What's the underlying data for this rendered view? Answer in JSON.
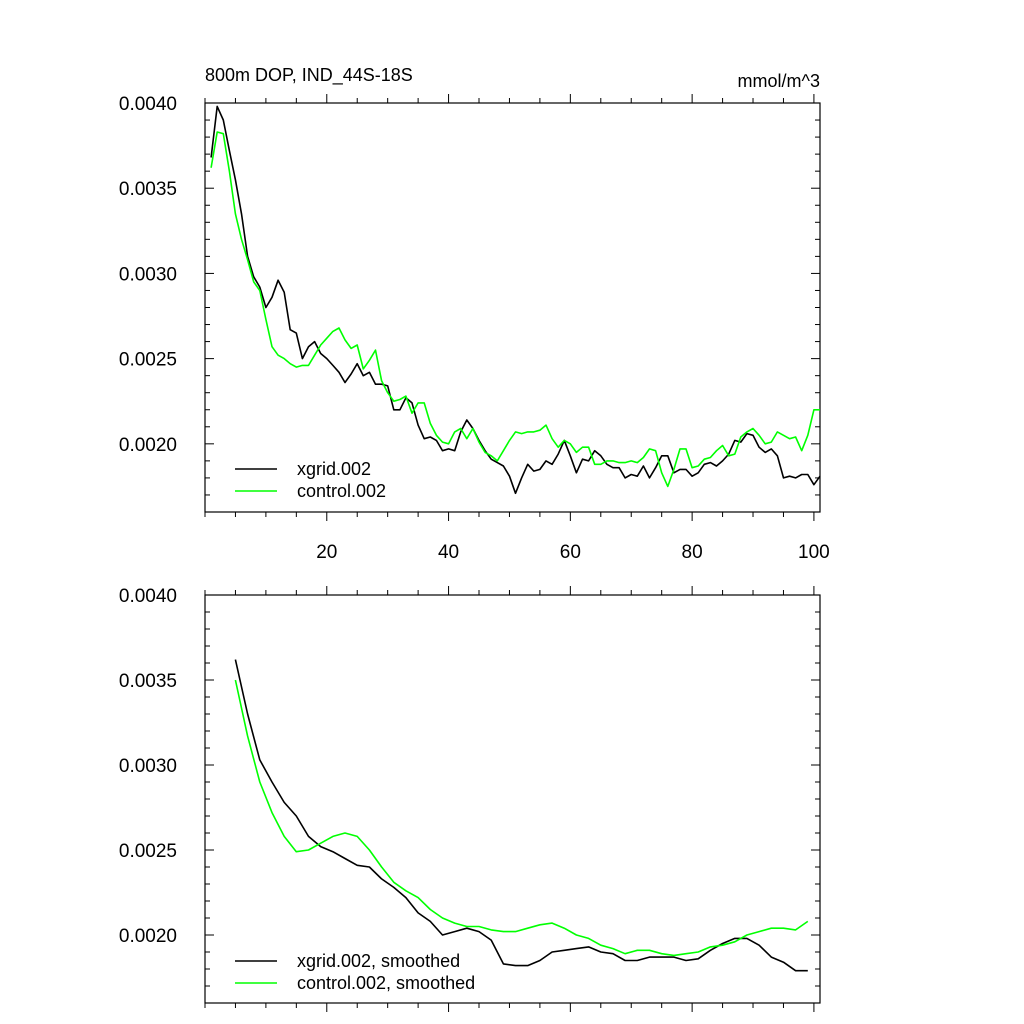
{
  "chart_data": [
    {
      "type": "line",
      "title": "800m DOP, IND_44S-18S",
      "units": "mmol/m^3",
      "xlim": [
        0,
        101
      ],
      "ylim": [
        0.0016,
        0.004
      ],
      "xticks": [
        20,
        40,
        60,
        80,
        100
      ],
      "xtick_labels": [
        "20",
        "40",
        "60",
        "80",
        "100"
      ],
      "yticks": [
        0.002,
        0.0025,
        0.003,
        0.0035,
        0.004
      ],
      "ytick_labels": [
        "0.0020",
        "0.0025",
        "0.0030",
        "0.0035",
        "0.0040"
      ],
      "legend_position": "bottom-left",
      "series": [
        {
          "name": "xgrid.002",
          "color": "#000000",
          "x": [
            1,
            2,
            3,
            4,
            5,
            6,
            7,
            8,
            9,
            10,
            11,
            12,
            13,
            14,
            15,
            16,
            17,
            18,
            19,
            20,
            21,
            22,
            23,
            24,
            25,
            26,
            27,
            28,
            29,
            30,
            31,
            32,
            33,
            34,
            35,
            36,
            37,
            38,
            39,
            40,
            41,
            42,
            43,
            44,
            45,
            46,
            47,
            48,
            49,
            50,
            51,
            52,
            53,
            54,
            55,
            56,
            57,
            58,
            59,
            60,
            61,
            62,
            63,
            64,
            65,
            66,
            67,
            68,
            69,
            70,
            71,
            72,
            73,
            74,
            75,
            76,
            77,
            78,
            79,
            80,
            81,
            82,
            83,
            84,
            85,
            86,
            87,
            88,
            89,
            90,
            91,
            92,
            93,
            94,
            95,
            96,
            97,
            98,
            99,
            100,
            101
          ],
          "values": [
            0.00368,
            0.00398,
            0.0039,
            0.00372,
            0.00355,
            0.00335,
            0.0031,
            0.00298,
            0.00292,
            0.0028,
            0.00286,
            0.00296,
            0.00289,
            0.00267,
            0.00265,
            0.0025,
            0.00257,
            0.0026,
            0.00253,
            0.0025,
            0.00246,
            0.00242,
            0.00236,
            0.00241,
            0.00247,
            0.0024,
            0.00242,
            0.00235,
            0.00235,
            0.00234,
            0.0022,
            0.0022,
            0.00227,
            0.00224,
            0.00211,
            0.00203,
            0.00204,
            0.00202,
            0.00196,
            0.00197,
            0.00196,
            0.00207,
            0.00214,
            0.00209,
            0.00202,
            0.00196,
            0.00191,
            0.00189,
            0.00187,
            0.00181,
            0.00171,
            0.0018,
            0.00188,
            0.00184,
            0.00185,
            0.0019,
            0.00188,
            0.00194,
            0.00202,
            0.00193,
            0.00183,
            0.00191,
            0.0019,
            0.00196,
            0.00193,
            0.00188,
            0.00186,
            0.00186,
            0.0018,
            0.00182,
            0.00181,
            0.00187,
            0.0018,
            0.00186,
            0.00193,
            0.00193,
            0.00183,
            0.00185,
            0.00185,
            0.00181,
            0.00183,
            0.00188,
            0.00189,
            0.00187,
            0.0019,
            0.00194,
            0.00202,
            0.00201,
            0.00206,
            0.00205,
            0.00198,
            0.00195,
            0.00197,
            0.00193,
            0.0018,
            0.00181,
            0.0018,
            0.00182,
            0.00182,
            0.00176,
            0.00181
          ]
        },
        {
          "name": "control.002",
          "color": "#00ff00",
          "x": [
            1,
            2,
            3,
            4,
            5,
            6,
            7,
            8,
            9,
            10,
            11,
            12,
            13,
            14,
            15,
            16,
            17,
            18,
            19,
            20,
            21,
            22,
            23,
            24,
            25,
            26,
            27,
            28,
            29,
            30,
            31,
            32,
            33,
            34,
            35,
            36,
            37,
            38,
            39,
            40,
            41,
            42,
            43,
            44,
            45,
            46,
            47,
            48,
            49,
            50,
            51,
            52,
            53,
            54,
            55,
            56,
            57,
            58,
            59,
            60,
            61,
            62,
            63,
            64,
            65,
            66,
            67,
            68,
            69,
            70,
            71,
            72,
            73,
            74,
            75,
            76,
            77,
            78,
            79,
            80,
            81,
            82,
            83,
            84,
            85,
            86,
            87,
            88,
            89,
            90,
            91,
            92,
            93,
            94,
            95,
            96,
            97,
            98,
            99,
            100,
            101
          ],
          "values": [
            0.00362,
            0.00383,
            0.00382,
            0.0036,
            0.00335,
            0.0032,
            0.00308,
            0.00295,
            0.0029,
            0.00273,
            0.00257,
            0.00252,
            0.0025,
            0.00247,
            0.00245,
            0.00246,
            0.00246,
            0.00252,
            0.00258,
            0.00262,
            0.00266,
            0.00268,
            0.00261,
            0.00256,
            0.00258,
            0.00244,
            0.00249,
            0.00255,
            0.00237,
            0.0023,
            0.00225,
            0.00226,
            0.00228,
            0.00218,
            0.00224,
            0.00224,
            0.00212,
            0.00205,
            0.00201,
            0.002,
            0.00207,
            0.00209,
            0.00203,
            0.00209,
            0.00201,
            0.00195,
            0.00193,
            0.0019,
            0.00196,
            0.00202,
            0.00207,
            0.00206,
            0.00207,
            0.00207,
            0.00208,
            0.00211,
            0.00203,
            0.00198,
            0.00202,
            0.002,
            0.00195,
            0.00198,
            0.00198,
            0.00188,
            0.00188,
            0.0019,
            0.0019,
            0.00189,
            0.00189,
            0.0019,
            0.00189,
            0.00192,
            0.00197,
            0.00196,
            0.00183,
            0.00175,
            0.00185,
            0.00197,
            0.00197,
            0.00186,
            0.00187,
            0.00191,
            0.00192,
            0.00196,
            0.00199,
            0.00193,
            0.00194,
            0.00204,
            0.00207,
            0.00209,
            0.00205,
            0.002,
            0.00201,
            0.00207,
            0.00205,
            0.00203,
            0.00204,
            0.00196,
            0.00205,
            0.0022,
            0.0022
          ]
        }
      ]
    },
    {
      "type": "line",
      "title": "",
      "units": "",
      "xlim": [
        0,
        101
      ],
      "ylim": [
        0.0016,
        0.004
      ],
      "xticks": [
        20,
        40,
        60,
        80,
        100
      ],
      "xtick_labels": [],
      "yticks": [
        0.002,
        0.0025,
        0.003,
        0.0035,
        0.004
      ],
      "ytick_labels": [
        "0.0020",
        "0.0025",
        "0.0030",
        "0.0035",
        "0.0040"
      ],
      "legend_position": "bottom-left",
      "series": [
        {
          "name": "xgrid.002, smoothed",
          "color": "#000000",
          "x": [
            5,
            7,
            9,
            11,
            13,
            15,
            17,
            19,
            21,
            23,
            25,
            27,
            29,
            31,
            33,
            35,
            37,
            39,
            41,
            43,
            45,
            47,
            49,
            51,
            53,
            55,
            57,
            59,
            61,
            63,
            65,
            67,
            69,
            71,
            73,
            75,
            77,
            79,
            81,
            83,
            85,
            87,
            89,
            91,
            93,
            95,
            97,
            99
          ],
          "values": [
            0.00362,
            0.0033,
            0.00303,
            0.0029,
            0.00278,
            0.0027,
            0.00258,
            0.00252,
            0.00249,
            0.00245,
            0.00241,
            0.0024,
            0.00233,
            0.00228,
            0.00222,
            0.00213,
            0.00208,
            0.002,
            0.00202,
            0.00204,
            0.00202,
            0.00197,
            0.00183,
            0.00182,
            0.00182,
            0.00185,
            0.0019,
            0.00191,
            0.00192,
            0.00193,
            0.0019,
            0.00189,
            0.00185,
            0.00185,
            0.00187,
            0.00187,
            0.00187,
            0.00185,
            0.00186,
            0.00191,
            0.00195,
            0.00198,
            0.00198,
            0.00194,
            0.00187,
            0.00184,
            0.00179,
            0.00179
          ]
        },
        {
          "name": "control.002, smoothed",
          "color": "#00ff00",
          "x": [
            5,
            7,
            9,
            11,
            13,
            15,
            17,
            19,
            21,
            23,
            25,
            27,
            29,
            31,
            33,
            35,
            37,
            39,
            41,
            43,
            45,
            47,
            49,
            51,
            53,
            55,
            57,
            59,
            61,
            63,
            65,
            67,
            69,
            71,
            73,
            75,
            77,
            79,
            81,
            83,
            85,
            87,
            89,
            91,
            93,
            95,
            97,
            99
          ],
          "values": [
            0.0035,
            0.00317,
            0.0029,
            0.00272,
            0.00258,
            0.00249,
            0.0025,
            0.00254,
            0.00258,
            0.0026,
            0.00258,
            0.0025,
            0.0024,
            0.00231,
            0.00226,
            0.00222,
            0.00215,
            0.0021,
            0.00207,
            0.00205,
            0.00205,
            0.00203,
            0.00202,
            0.00202,
            0.00204,
            0.00206,
            0.00207,
            0.00204,
            0.002,
            0.00198,
            0.00194,
            0.00192,
            0.00189,
            0.00191,
            0.00191,
            0.00189,
            0.00188,
            0.00189,
            0.0019,
            0.00193,
            0.00194,
            0.00196,
            0.002,
            0.00202,
            0.00204,
            0.00204,
            0.00203,
            0.00208
          ]
        }
      ]
    }
  ]
}
